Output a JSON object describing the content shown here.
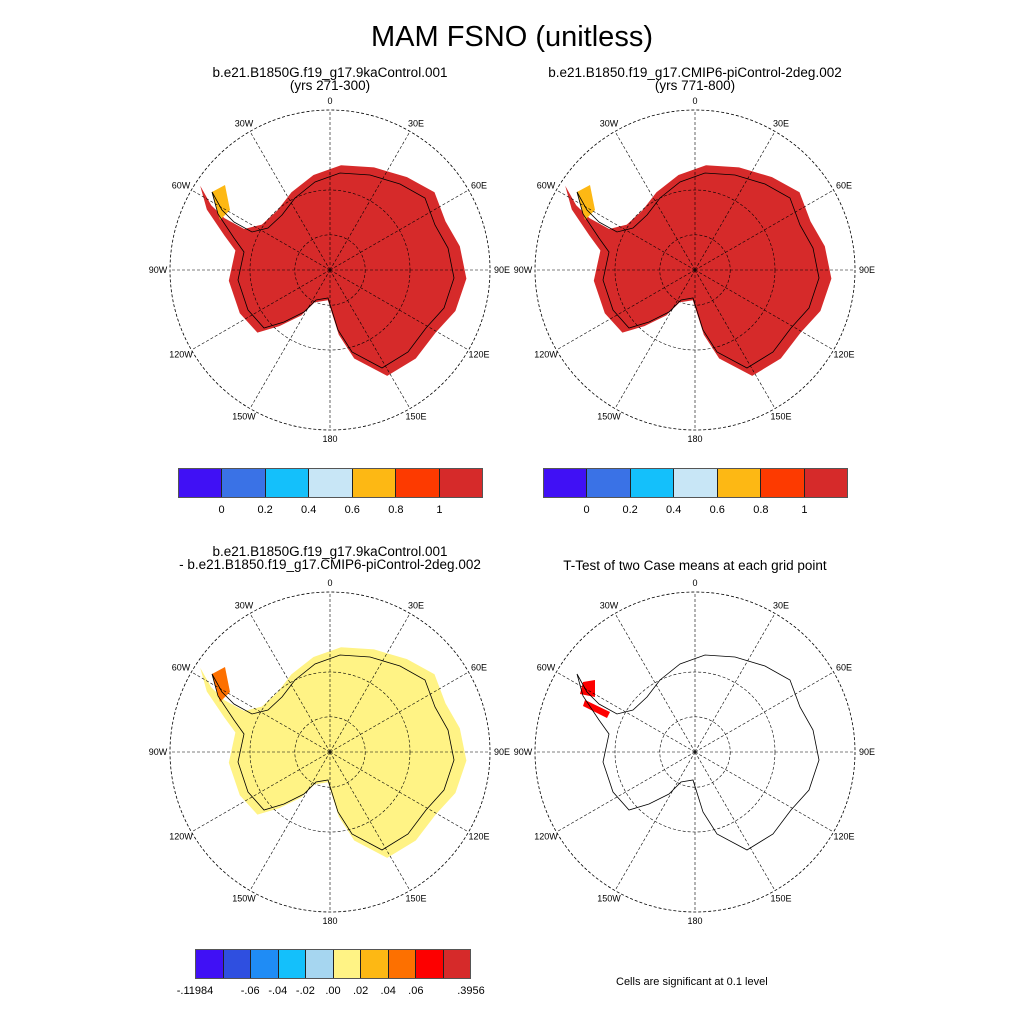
{
  "title": "MAM FSNO (unitless)",
  "panels": [
    {
      "title1": "b.e21.B1850G.f19_g17.9kaControl.001",
      "title2": "(yrs 271-300)",
      "fill": "#d62a2a",
      "fill_name": "case1"
    },
    {
      "title1": "b.e21.B1850.f19_g17.CMIP6-piControl-2deg.002",
      "title2": "(yrs 771-800)",
      "fill": "#d62a2a",
      "fill_name": "case2"
    },
    {
      "title1": "b.e21.B1850G.f19_g17.9kaControl.001",
      "title2": "- b.e21.B1850.f19_g17.CMIP6-piControl-2deg.002",
      "fill": "#fff385",
      "fill_name": "difference"
    },
    {
      "title1": "T-Test of two Case means at each grid point",
      "title2": "",
      "fill": "none",
      "fill_name": "ttest"
    }
  ],
  "meridian_labels": [
    "0",
    "30E",
    "60E",
    "90E",
    "120E",
    "150E",
    "180",
    "150W",
    "120W",
    "90W",
    "60W",
    "30W"
  ],
  "colorbar_main": {
    "colors": [
      "#4010f5",
      "#3a72e6",
      "#14c0fb",
      "#c8e6f6",
      "#fdb814",
      "#fd3a00",
      "#d62a2a"
    ],
    "labels": [
      "0",
      "0.2",
      "0.4",
      "0.6",
      "0.8",
      "1"
    ]
  },
  "colorbar_diff": {
    "colors": [
      "#4010f5",
      "#2f4fe0",
      "#1f8cf5",
      "#14c0fb",
      "#a6d6f0",
      "#fff385",
      "#fdb814",
      "#fd7000",
      "#fd0000",
      "#d62a2a"
    ],
    "labels": [
      "-.11984",
      "-.06",
      "-.04",
      "-.02",
      ".00",
      ".02",
      ".04",
      ".06",
      ".3956"
    ]
  },
  "significance_note": "Cells are significant at 0.1 level"
}
